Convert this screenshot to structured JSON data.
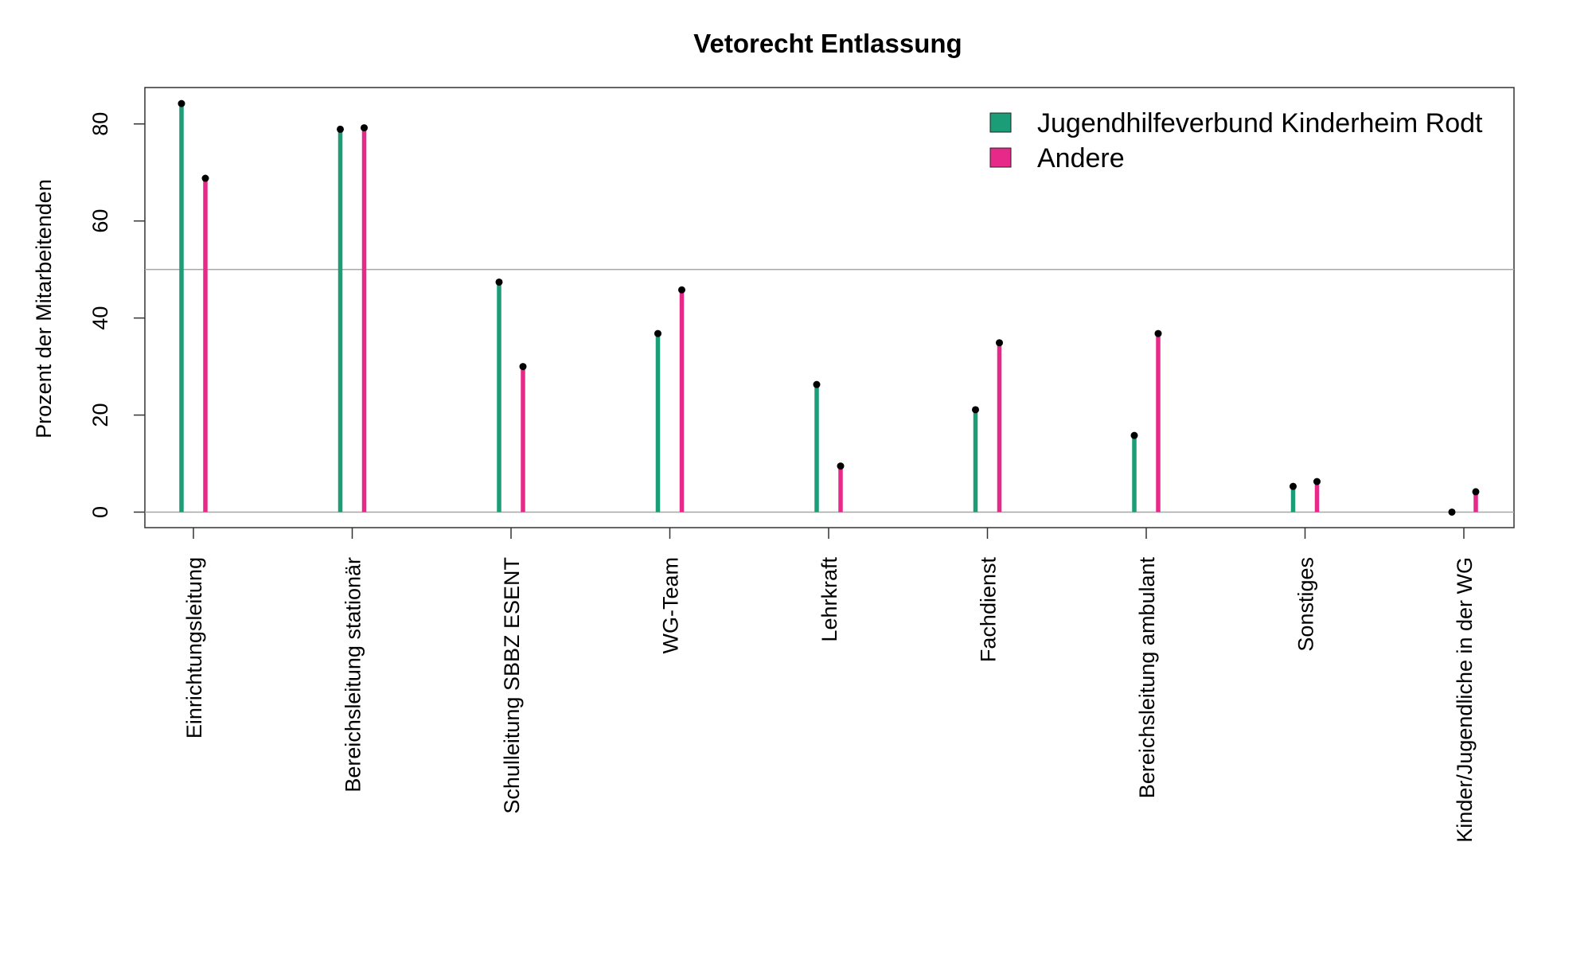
{
  "chart_data": {
    "type": "bar",
    "title": "Vetorecht Entlassung",
    "xlabel": "",
    "ylabel": "Prozent der Mitarbeitenden",
    "ylim": [
      -3.2,
      87.5
    ],
    "yticks": [
      0,
      20,
      40,
      60,
      80
    ],
    "reference_lines": [
      0,
      50
    ],
    "grid": false,
    "legend_position": "top-right",
    "categories": [
      "Einrichtungsleitung",
      "Bereichsleitung stationär",
      "Schulleitung SBBZ ESENT",
      "WG-Team",
      "Lehrkraft",
      "Fachdienst",
      "Bereichsleitung ambulant",
      "Sonstiges",
      "Kinder/Jugendliche in der WG"
    ],
    "series": [
      {
        "name": "Jugendhilfeverbund Kinderheim Rodt",
        "color": "#1b9e77",
        "values": [
          84.2,
          78.9,
          47.4,
          36.8,
          26.3,
          21.1,
          15.8,
          5.3,
          0.0
        ]
      },
      {
        "name": "Andere",
        "color": "#e7298a",
        "values": [
          68.8,
          79.2,
          30.0,
          45.8,
          9.5,
          34.9,
          36.8,
          6.3,
          4.2
        ]
      }
    ]
  }
}
